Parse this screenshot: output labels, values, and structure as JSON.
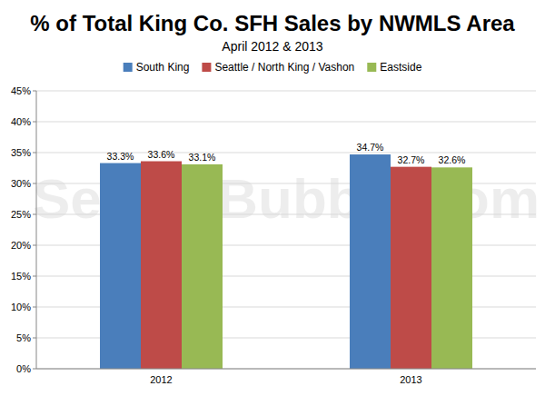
{
  "chart_data": {
    "type": "bar",
    "title": "% of Total King Co. SFH Sales by NWMLS Area",
    "subtitle": "April 2012 & 2013",
    "annotations": [
      "SeattleBubble.com"
    ],
    "categories": [
      "2012",
      "2013"
    ],
    "series": [
      {
        "name": "South King",
        "color": "#4a7ebb",
        "values": [
          33.3,
          34.7
        ],
        "value_labels": [
          "33.3%",
          "34.7%"
        ]
      },
      {
        "name": "Seattle / North King / Vashon",
        "color": "#be4b48",
        "values": [
          33.6,
          32.7
        ],
        "value_labels": [
          "33.6%",
          "32.7%"
        ]
      },
      {
        "name": "Eastside",
        "color": "#98b954",
        "values": [
          33.1,
          32.6
        ],
        "value_labels": [
          "33.1%",
          "32.6%"
        ]
      }
    ],
    "ylim": [
      0,
      45
    ],
    "yticks": [
      {
        "value": 0,
        "label": "0%"
      },
      {
        "value": 5,
        "label": "5%"
      },
      {
        "value": 10,
        "label": "10%"
      },
      {
        "value": 15,
        "label": "15%"
      },
      {
        "value": 20,
        "label": "20%"
      },
      {
        "value": 25,
        "label": "25%"
      },
      {
        "value": 30,
        "label": "30%"
      },
      {
        "value": 35,
        "label": "35%"
      },
      {
        "value": 40,
        "label": "40%"
      },
      {
        "value": 45,
        "label": "45%"
      }
    ],
    "grid": true,
    "legend": "top",
    "data_labels": true
  }
}
